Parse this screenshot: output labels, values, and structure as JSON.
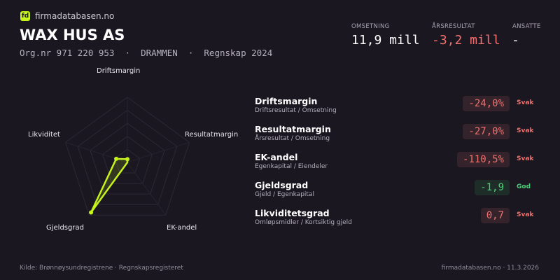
{
  "brand": {
    "logo_text": "fd",
    "site": "firmadatabasen.no",
    "accent": "#c6f31b"
  },
  "company": {
    "name": "WAX HUS AS",
    "subtitle": "Org.nr 971 220 953  ·  DRAMMEN  ·  Regnskap 2024"
  },
  "kpis": [
    {
      "label": "OMSETNING",
      "value": "11,9 mill",
      "color": "#ffffff"
    },
    {
      "label": "ÅRSRESULTAT",
      "value": "-3,2 mill",
      "color": "#f07070"
    },
    {
      "label": "ANSATTE",
      "value": "-",
      "color": "#ffffff"
    }
  ],
  "radar": {
    "axes": [
      "Driftsmargin",
      "Resultatmargin",
      "EK-andel",
      "Gjeldsgrad",
      "Likviditet"
    ],
    "values": [
      0.05,
      0,
      0,
      0.95,
      0.18
    ],
    "levels": 5
  },
  "metrics": [
    {
      "name": "Driftsmargin",
      "desc": "Driftsresultat / Omsetning",
      "value": "-24,0%",
      "status": "Svak",
      "good": false
    },
    {
      "name": "Resultatmargin",
      "desc": "Årsresultat / Omsetning",
      "value": "-27,0%",
      "status": "Svak",
      "good": false
    },
    {
      "name": "EK-andel",
      "desc": "Egenkapital / Eiendeler",
      "value": "-110,5%",
      "status": "Svak",
      "good": false
    },
    {
      "name": "Gjeldsgrad",
      "desc": "Gjeld / Egenkapital",
      "value": "-1,9",
      "status": "God",
      "good": true
    },
    {
      "name": "Likviditetsgrad",
      "desc": "Omløpsmidler / Kortsiktig gjeld",
      "value": "0,7",
      "status": "Svak",
      "good": false
    }
  ],
  "footer": {
    "source": "Kilde: Brønnøysundregistrene · Regnskapsregisteret",
    "right": "firmadatabasen.no · 11.3.2026"
  }
}
